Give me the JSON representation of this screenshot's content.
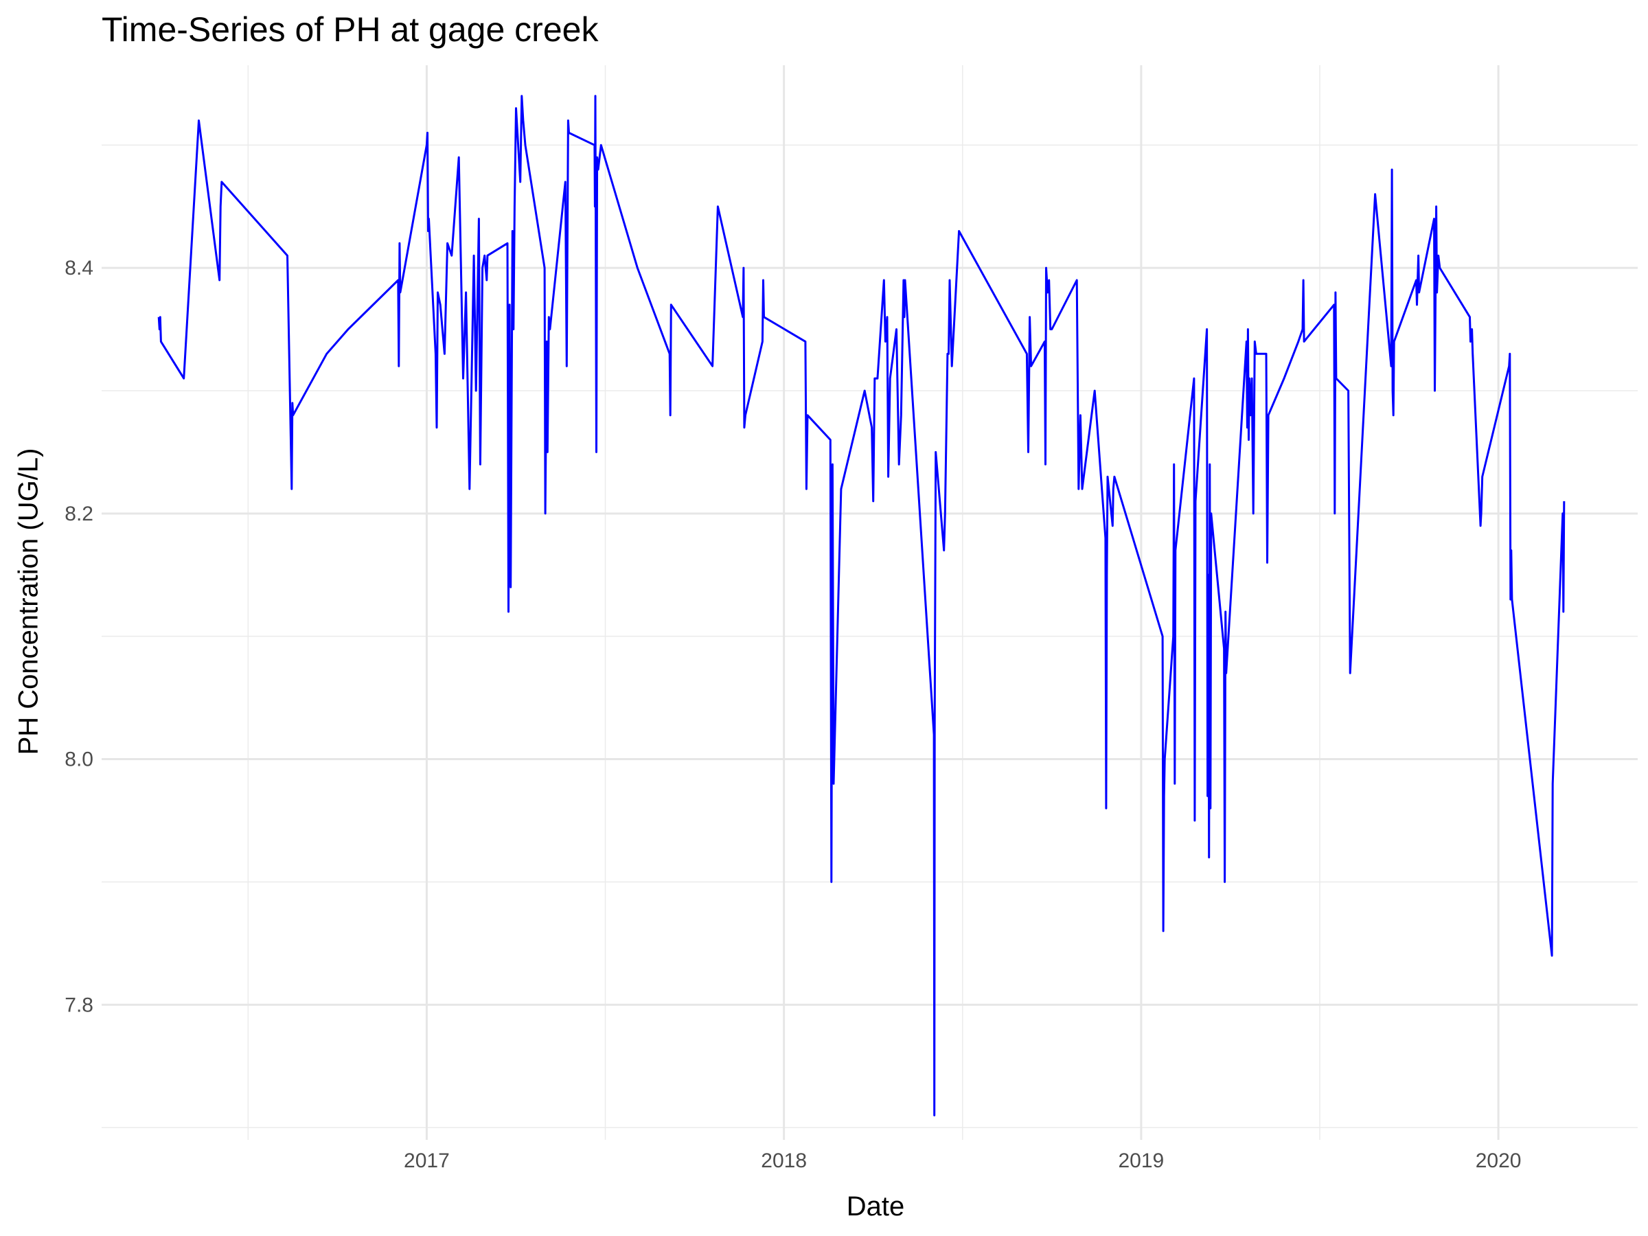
{
  "chart_data": {
    "type": "line",
    "title": "Time-Series of PH at gage creek",
    "xlabel": "Date",
    "ylabel": "PH Concentration (UG/L)",
    "xlim": [
      2016.09,
      2020.39
    ],
    "ylim": [
      7.69,
      8.565
    ],
    "x_ticks": [
      2017,
      2018,
      2019,
      2020
    ],
    "x_tick_labels": [
      "2017",
      "2018",
      "2019",
      "2020"
    ],
    "y_ticks": [
      7.8,
      8.0,
      8.2,
      8.4
    ],
    "y_tick_labels": [
      "7.8",
      "8.0",
      "8.2",
      "8.4"
    ],
    "grid": true,
    "line_color": "#0000ff",
    "series": [
      {
        "x": [
          2016.25,
          2016.252,
          2016.254,
          2016.256,
          2016.32,
          2016.36,
          2016.362,
          2016.42,
          2016.423,
          2016.426,
          2016.61,
          2016.622,
          2016.624,
          2016.626,
          2016.72,
          2016.78,
          2016.92,
          2016.922,
          2016.924,
          2016.926,
          2017.0,
          2017.002,
          2017.004,
          2017.006,
          2017.025,
          2017.028,
          2017.031,
          2017.038,
          2017.05,
          2017.058,
          2017.07,
          2017.09,
          2017.102,
          2017.11,
          2017.12,
          2017.132,
          2017.138,
          2017.146,
          2017.15,
          2017.156,
          2017.162,
          2017.168,
          2017.17,
          2017.226,
          2017.229,
          2017.232,
          2017.235,
          2017.24,
          2017.243,
          2017.246,
          2017.25,
          2017.262,
          2017.266,
          2017.27,
          2017.276,
          2017.33,
          2017.332,
          2017.336,
          2017.338,
          2017.342,
          2017.345,
          2017.388,
          2017.392,
          2017.396,
          2017.398,
          2017.47,
          2017.471,
          2017.472,
          2017.475,
          2017.477,
          2017.48,
          2017.488,
          2017.59,
          2017.68,
          2017.682,
          2017.684,
          2017.8,
          2017.815,
          2017.885,
          2017.887,
          2017.889,
          2017.892,
          2017.94,
          2017.942,
          2017.944,
          2018.06,
          2018.063,
          2018.066,
          2018.13,
          2018.133,
          2018.136,
          2018.139,
          2018.16,
          2018.226,
          2018.246,
          2018.25,
          2018.254,
          2018.262,
          2018.28,
          2018.284,
          2018.289,
          2018.292,
          2018.297,
          2018.315,
          2018.322,
          2018.328,
          2018.335,
          2018.337,
          2018.339,
          2018.42,
          2018.421,
          2018.422,
          2018.425,
          2018.448,
          2018.451,
          2018.458,
          2018.461,
          2018.464,
          2018.47,
          2018.49,
          2018.68,
          2018.684,
          2018.688,
          2018.692,
          2018.73,
          2018.732,
          2018.734,
          2018.738,
          2018.742,
          2018.746,
          2018.75,
          2018.82,
          2018.825,
          2018.83,
          2018.835,
          2018.87,
          2018.9,
          2018.902,
          2018.904,
          2018.906,
          2018.92,
          2018.922,
          2018.925,
          2019.06,
          2019.062,
          2019.064,
          2019.066,
          2019.09,
          2019.092,
          2019.094,
          2019.096,
          2019.148,
          2019.15,
          2019.152,
          2019.184,
          2019.186,
          2019.188,
          2019.19,
          2019.192,
          2019.194,
          2019.196,
          2019.232,
          2019.234,
          2019.236,
          2019.238,
          2019.295,
          2019.297,
          2019.299,
          2019.301,
          2019.303,
          2019.306,
          2019.31,
          2019.314,
          2019.318,
          2019.322,
          2019.35,
          2019.353,
          2019.356,
          2019.4,
          2019.44,
          2019.452,
          2019.454,
          2019.456,
          2019.54,
          2019.542,
          2019.544,
          2019.546,
          2019.58,
          2019.585,
          2019.655,
          2019.7,
          2019.702,
          2019.704,
          2019.706,
          2019.708,
          2019.77,
          2019.772,
          2019.776,
          2019.778,
          2019.82,
          2019.822,
          2019.826,
          2019.828,
          2019.832,
          2019.836,
          2019.92,
          2019.922,
          2019.926,
          2019.928,
          2019.95,
          2019.952,
          2019.955,
          2020.03,
          2020.032,
          2020.034,
          2020.036,
          2020.038,
          2020.15,
          2020.152,
          2020.18,
          2020.182,
          2020.184
        ],
        "values": [
          8.36,
          8.35,
          8.36,
          8.34,
          8.31,
          8.51,
          8.52,
          8.39,
          8.45,
          8.47,
          8.41,
          8.22,
          8.29,
          8.28,
          8.33,
          8.35,
          8.39,
          8.32,
          8.42,
          8.38,
          8.5,
          8.51,
          8.43,
          8.44,
          8.33,
          8.27,
          8.38,
          8.37,
          8.33,
          8.42,
          8.41,
          8.49,
          8.31,
          8.38,
          8.22,
          8.41,
          8.3,
          8.44,
          8.24,
          8.4,
          8.41,
          8.39,
          8.41,
          8.42,
          8.12,
          8.37,
          8.14,
          8.43,
          8.35,
          8.45,
          8.53,
          8.47,
          8.54,
          8.52,
          8.5,
          8.4,
          8.2,
          8.34,
          8.25,
          8.36,
          8.35,
          8.47,
          8.32,
          8.52,
          8.51,
          8.5,
          8.45,
          8.54,
          8.25,
          8.49,
          8.48,
          8.5,
          8.4,
          8.33,
          8.28,
          8.37,
          8.32,
          8.45,
          8.36,
          8.4,
          8.27,
          8.28,
          8.34,
          8.39,
          8.36,
          8.34,
          8.22,
          8.28,
          8.26,
          7.9,
          8.24,
          7.98,
          8.22,
          8.3,
          8.27,
          8.21,
          8.31,
          8.31,
          8.39,
          8.34,
          8.36,
          8.23,
          8.31,
          8.35,
          8.24,
          8.28,
          8.39,
          8.36,
          8.39,
          8.02,
          7.71,
          8.03,
          8.25,
          8.17,
          8.2,
          8.33,
          8.33,
          8.39,
          8.32,
          8.43,
          8.33,
          8.25,
          8.36,
          8.32,
          8.34,
          8.24,
          8.4,
          8.38,
          8.39,
          8.35,
          8.35,
          8.39,
          8.22,
          8.28,
          8.22,
          8.3,
          8.18,
          7.96,
          8.15,
          8.23,
          8.19,
          8.22,
          8.23,
          8.1,
          7.86,
          7.97,
          8.0,
          8.1,
          8.24,
          7.98,
          8.17,
          8.31,
          7.95,
          8.21,
          8.35,
          7.97,
          8.15,
          7.92,
          8.24,
          7.96,
          8.2,
          8.09,
          7.9,
          8.12,
          8.07,
          8.34,
          8.27,
          8.35,
          8.26,
          8.31,
          8.28,
          8.31,
          8.2,
          8.34,
          8.33,
          8.33,
          8.16,
          8.28,
          8.31,
          8.34,
          8.35,
          8.39,
          8.34,
          8.37,
          8.2,
          8.38,
          8.31,
          8.3,
          8.07,
          8.46,
          8.32,
          8.48,
          8.3,
          8.28,
          8.34,
          8.39,
          8.37,
          8.41,
          8.38,
          8.44,
          8.3,
          8.45,
          8.38,
          8.41,
          8.4,
          8.36,
          8.34,
          8.35,
          8.33,
          8.19,
          8.2,
          8.23,
          8.32,
          8.33,
          8.13,
          8.17,
          8.13,
          7.84,
          7.98,
          8.2,
          8.12,
          8.21
        ]
      }
    ]
  }
}
